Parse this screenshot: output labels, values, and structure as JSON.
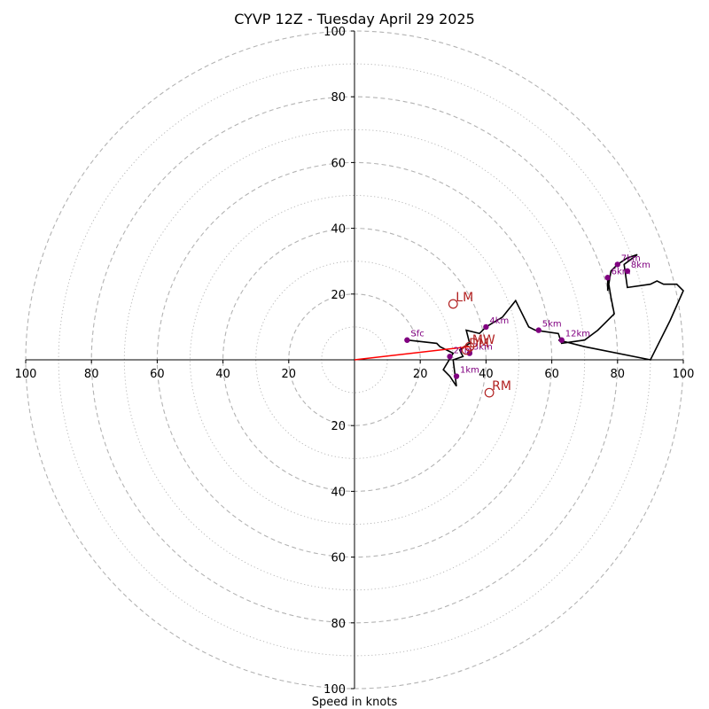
{
  "chart_data": {
    "type": "hodograph",
    "title": "CYVP 12Z - Tuesday April 29 2025",
    "xlabel": "Speed in knots",
    "axis_range": [
      -100,
      100
    ],
    "ring_step": 10,
    "major_ring_step": 20,
    "grid": true,
    "tick_labels": {
      "x": [
        "100",
        "80",
        "60",
        "40",
        "20",
        "20",
        "40",
        "60",
        "80",
        "100"
      ],
      "y": [
        "100",
        "80",
        "60",
        "40",
        "20",
        "20",
        "40",
        "60",
        "80",
        "100"
      ]
    },
    "tick_values": {
      "x": [
        -100,
        -80,
        -60,
        -40,
        -20,
        20,
        40,
        60,
        80,
        100
      ],
      "y": [
        100,
        80,
        60,
        40,
        20,
        -20,
        -40,
        -60,
        -80,
        -100
      ]
    },
    "hodograph": {
      "color": "#000000",
      "u": [
        16,
        25,
        26,
        30,
        27,
        29,
        31,
        30,
        33,
        32,
        35,
        34,
        38,
        40,
        45,
        49,
        53,
        55,
        62,
        63,
        70,
        74,
        76,
        79,
        78,
        77,
        77,
        78,
        80,
        83,
        86,
        82,
        83,
        90,
        92,
        94,
        98,
        100,
        96,
        90,
        70,
        62
      ],
      "v": [
        6,
        5,
        4,
        2,
        -3,
        -5,
        -8,
        0,
        1,
        3,
        5,
        9,
        8,
        10,
        13,
        18,
        10,
        9,
        8,
        5,
        6,
        9,
        11,
        14,
        19,
        25,
        21,
        27,
        29,
        31,
        32,
        29,
        22,
        23,
        24,
        23,
        23,
        21,
        12,
        0,
        4,
        6
      ]
    },
    "height_markers": [
      {
        "label": "Sfc",
        "u": 16,
        "v": 6
      },
      {
        "label": "1km",
        "u": 31,
        "v": -5
      },
      {
        "label": "2km",
        "u": 29,
        "v": 1
      },
      {
        "label": "3km",
        "u": 35,
        "v": 2
      },
      {
        "label": "4km",
        "u": 40,
        "v": 10
      },
      {
        "label": "5km",
        "u": 56,
        "v": 9
      },
      {
        "label": "6km",
        "u": 77,
        "v": 25
      },
      {
        "label": "7km",
        "u": 80,
        "v": 29
      },
      {
        "label": "8km",
        "u": 83,
        "v": 27
      },
      {
        "label": "12km",
        "u": 63,
        "v": 6
      }
    ],
    "markers": [
      {
        "label": "LM",
        "u": 30,
        "v": 17
      },
      {
        "label": "RM",
        "u": 41,
        "v": -10
      },
      {
        "label": "MW",
        "u": 35,
        "v": 4
      },
      {
        "label": "DM",
        "u": 34,
        "v": 3
      }
    ],
    "mean_wind_vector": {
      "u": 35,
      "v": 4,
      "color": "#ff0000"
    },
    "colors": {
      "hodograph": "#000000",
      "height_marker": "#800080",
      "storm_marker": "#b22222",
      "vector": "#ff0000",
      "grid": "#b3b3b3"
    }
  }
}
